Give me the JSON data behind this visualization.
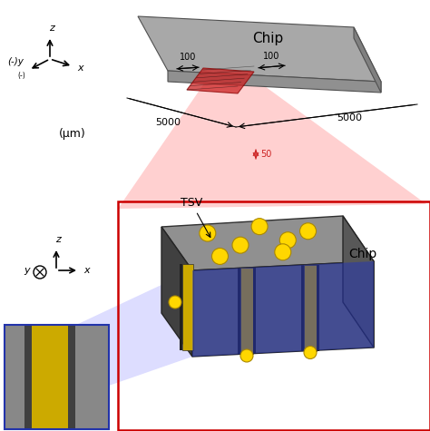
{
  "background_color": "#ffffff",
  "chip_top_color": "#a8a8a8",
  "chip_side_color": "#888888",
  "chip_bottom_color": "#707070",
  "chip_label": "Chip",
  "dim_100_left": "100",
  "dim_100_right": "100",
  "dim_5000_left": "5000",
  "dim_5000_right": "5000",
  "dim_50": "50",
  "um_label": "(μm)",
  "tsv_label": "TSV",
  "chip_label_bottom": "Chip",
  "box_top_color": "#909090",
  "box_front_color": "#686868",
  "box_right_color": "#585858",
  "tsv_circle_color": "#FFD700",
  "tsv_circle_edge": "#aa8800",
  "yellow_stripe_color": "#ccaa00",
  "red_region_color": "#cc2222",
  "red_beam_color": "#ffaaaa",
  "blue_beam_color": "#aaaaff",
  "blue_face_color": "#3344cc",
  "red_box_color": "#cc0000",
  "blue_box_color": "#2233aa",
  "inset_bg_color": "#909090",
  "inset_gray1": "#808080",
  "inset_gray2": "#606060",
  "inset_yellow": "#ccaa00"
}
